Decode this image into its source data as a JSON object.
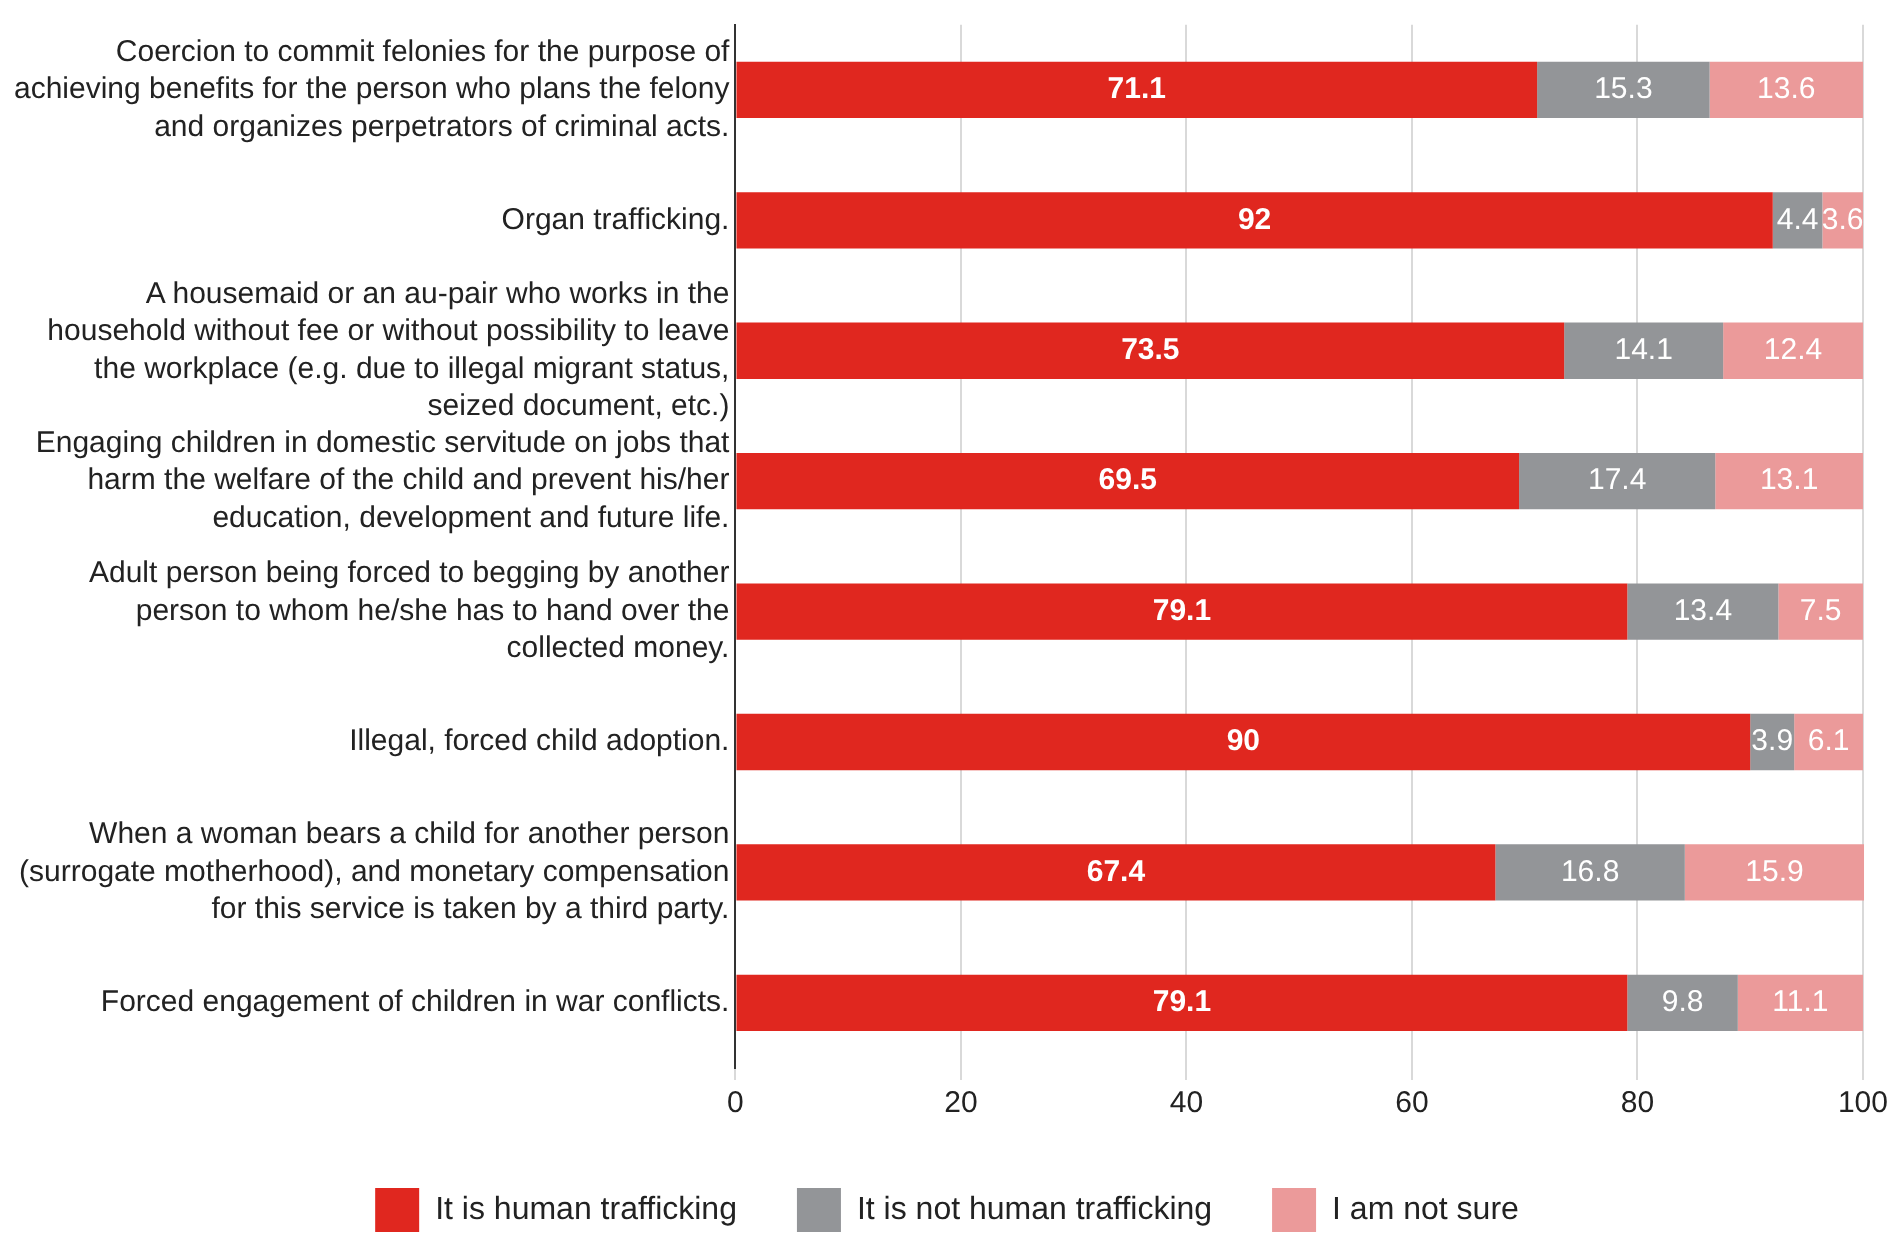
{
  "chart_data": {
    "type": "bar",
    "orientation": "horizontal",
    "stacked": true,
    "data_labels": true,
    "grid": "x",
    "legend": "bottom",
    "categories": [
      "Coercion to commit felonies for the purpose of achieving benefits for the person who plans the felony and organizes perpetrators of criminal acts.",
      "Organ trafficking.",
      "A housemaid or an au-pair who works in the household without fee or without possibility to leave the workplace (e.g. due to illegal migrant status, seized document, etc.)",
      "Engaging children in domestic servitude on jobs that harm the welfare of the child and prevent his/her education, development and future life.",
      "Adult person being forced to begging by another person to whom he/she has to hand over the collected money.",
      "Illegal, forced child adoption.",
      "When a woman bears a child for another person (surrogate motherhood), and monetary compensation for this service is taken by a third party.",
      "Forced engagement of children in war conflicts."
    ],
    "series": [
      {
        "name": "It is human trafficking",
        "color": "#e0271f",
        "values": [
          71.1,
          92,
          73.5,
          69.5,
          79.1,
          90,
          67.4,
          79.1
        ]
      },
      {
        "name": "It is not human trafficking",
        "color": "#939598",
        "values": [
          15.3,
          4.4,
          14.1,
          17.4,
          13.4,
          3.9,
          16.8,
          9.8
        ]
      },
      {
        "name": "I am not sure",
        "color": "#eb9a9a",
        "values": [
          13.6,
          3.6,
          12.4,
          13.1,
          7.5,
          6.1,
          15.9,
          11.1
        ]
      }
    ],
    "xlim": [
      0,
      100.1
    ],
    "xticks": [
      0,
      20,
      40,
      60,
      80,
      100
    ]
  }
}
